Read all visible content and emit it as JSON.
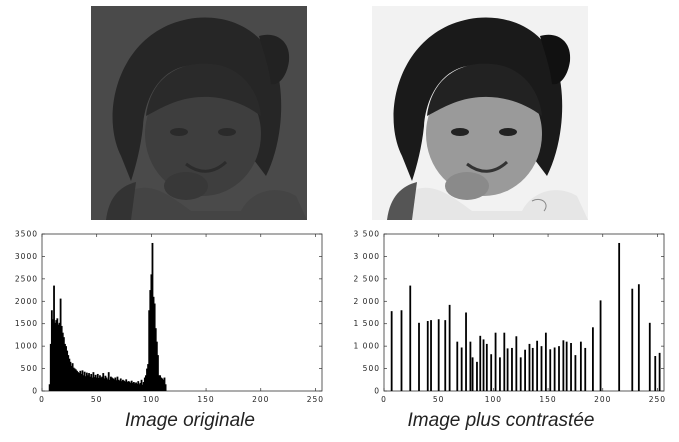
{
  "captions": {
    "original": "Image originale",
    "contrast": "Image plus contrastée"
  },
  "photos": {
    "original": {
      "subject": "child-portrait",
      "tone": "dark-low-contrast",
      "background": "#4a4a4a"
    },
    "contrast": {
      "subject": "child-portrait",
      "tone": "high-contrast",
      "background": "#f2f2f2"
    }
  },
  "chart_data": [
    {
      "type": "bar",
      "title": "",
      "xlabel": "",
      "ylabel": "",
      "xlim": [
        0,
        256
      ],
      "ylim": [
        0,
        3500
      ],
      "x_ticks": [
        0,
        50,
        100,
        150,
        200,
        250
      ],
      "y_ticks": [
        0,
        500,
        1000,
        1500,
        2000,
        2500,
        3000,
        3500
      ],
      "y_tick_labels": [
        "0",
        "500",
        "1000",
        "1500",
        "2000",
        "2500",
        "3000",
        "3500"
      ],
      "bars": [
        [
          7,
          150
        ],
        [
          8,
          1050
        ],
        [
          9,
          1800
        ],
        [
          10,
          1600
        ],
        [
          11,
          2350
        ],
        [
          12,
          1520
        ],
        [
          13,
          1580
        ],
        [
          14,
          1620
        ],
        [
          15,
          1480
        ],
        [
          16,
          1520
        ],
        [
          17,
          2060
        ],
        [
          18,
          1450
        ],
        [
          19,
          1300
        ],
        [
          20,
          1200
        ],
        [
          21,
          1050
        ],
        [
          22,
          1000
        ],
        [
          23,
          900
        ],
        [
          24,
          800
        ],
        [
          25,
          720
        ],
        [
          26,
          650
        ],
        [
          27,
          560
        ],
        [
          28,
          620
        ],
        [
          29,
          520
        ],
        [
          30,
          500
        ],
        [
          31,
          480
        ],
        [
          32,
          450
        ],
        [
          33,
          420
        ],
        [
          34,
          400
        ],
        [
          35,
          450
        ],
        [
          36,
          380
        ],
        [
          37,
          460
        ],
        [
          38,
          350
        ],
        [
          39,
          430
        ],
        [
          40,
          330
        ],
        [
          41,
          410
        ],
        [
          42,
          350
        ],
        [
          43,
          400
        ],
        [
          44,
          320
        ],
        [
          45,
          380
        ],
        [
          46,
          300
        ],
        [
          47,
          420
        ],
        [
          48,
          310
        ],
        [
          49,
          360
        ],
        [
          50,
          300
        ],
        [
          51,
          380
        ],
        [
          52,
          290
        ],
        [
          53,
          350
        ],
        [
          54,
          300
        ],
        [
          55,
          320
        ],
        [
          56,
          400
        ],
        [
          57,
          280
        ],
        [
          58,
          340
        ],
        [
          59,
          300
        ],
        [
          60,
          260
        ],
        [
          61,
          420
        ],
        [
          62,
          250
        ],
        [
          63,
          320
        ],
        [
          64,
          300
        ],
        [
          65,
          280
        ],
        [
          66,
          260
        ],
        [
          67,
          300
        ],
        [
          68,
          240
        ],
        [
          69,
          320
        ],
        [
          70,
          250
        ],
        [
          71,
          230
        ],
        [
          72,
          280
        ],
        [
          73,
          220
        ],
        [
          74,
          250
        ],
        [
          75,
          230
        ],
        [
          76,
          210
        ],
        [
          77,
          260
        ],
        [
          78,
          200
        ],
        [
          79,
          220
        ],
        [
          80,
          210
        ],
        [
          81,
          180
        ],
        [
          82,
          230
        ],
        [
          83,
          180
        ],
        [
          84,
          200
        ],
        [
          85,
          170
        ],
        [
          86,
          190
        ],
        [
          87,
          160
        ],
        [
          88,
          220
        ],
        [
          89,
          150
        ],
        [
          90,
          180
        ],
        [
          91,
          250
        ],
        [
          92,
          140
        ],
        [
          93,
          200
        ],
        [
          94,
          300
        ],
        [
          95,
          350
        ],
        [
          96,
          500
        ],
        [
          97,
          600
        ],
        [
          98,
          1800
        ],
        [
          99,
          2250
        ],
        [
          100,
          2600
        ],
        [
          101,
          3300
        ],
        [
          102,
          2100
        ],
        [
          103,
          1950
        ],
        [
          104,
          1400
        ],
        [
          105,
          1100
        ],
        [
          106,
          800
        ],
        [
          107,
          350
        ],
        [
          108,
          350
        ],
        [
          109,
          300
        ],
        [
          110,
          280
        ],
        [
          111,
          250
        ],
        [
          112,
          300
        ],
        [
          113,
          150
        ]
      ]
    },
    {
      "type": "bar",
      "title": "",
      "xlabel": "",
      "ylabel": "",
      "xlim": [
        0,
        256
      ],
      "ylim": [
        0,
        3500
      ],
      "x_ticks": [
        0,
        50,
        100,
        150,
        200,
        250
      ],
      "y_ticks": [
        0,
        500,
        1000,
        1500,
        2000,
        2500,
        3000,
        3500
      ],
      "y_tick_labels": [
        "0",
        "500",
        "1 000",
        "1 500",
        "2 000",
        "2 500",
        "3 000",
        "3 500"
      ],
      "bars": [
        [
          7,
          1780
        ],
        [
          16,
          1800
        ],
        [
          24,
          2350
        ],
        [
          32,
          1520
        ],
        [
          40,
          1560
        ],
        [
          43,
          1580
        ],
        [
          50,
          1600
        ],
        [
          56,
          1580
        ],
        [
          60,
          1920
        ],
        [
          67,
          1100
        ],
        [
          71,
          970
        ],
        [
          75,
          1750
        ],
        [
          79,
          1100
        ],
        [
          81,
          750
        ],
        [
          85,
          650
        ],
        [
          88,
          1230
        ],
        [
          91,
          1150
        ],
        [
          94,
          1050
        ],
        [
          98,
          820
        ],
        [
          102,
          1300
        ],
        [
          106,
          750
        ],
        [
          110,
          1300
        ],
        [
          113,
          950
        ],
        [
          117,
          960
        ],
        [
          121,
          1220
        ],
        [
          125,
          750
        ],
        [
          129,
          920
        ],
        [
          133,
          1050
        ],
        [
          136,
          960
        ],
        [
          140,
          1120
        ],
        [
          144,
          1000
        ],
        [
          148,
          1300
        ],
        [
          152,
          930
        ],
        [
          156,
          970
        ],
        [
          160,
          1000
        ],
        [
          164,
          1130
        ],
        [
          167,
          1100
        ],
        [
          171,
          1070
        ],
        [
          175,
          800
        ],
        [
          180,
          1100
        ],
        [
          184,
          960
        ],
        [
          191,
          1420
        ],
        [
          198,
          2020
        ],
        [
          215,
          3300
        ],
        [
          227,
          2280
        ],
        [
          233,
          2380
        ],
        [
          243,
          1520
        ],
        [
          248,
          780
        ],
        [
          252,
          850
        ]
      ]
    }
  ]
}
